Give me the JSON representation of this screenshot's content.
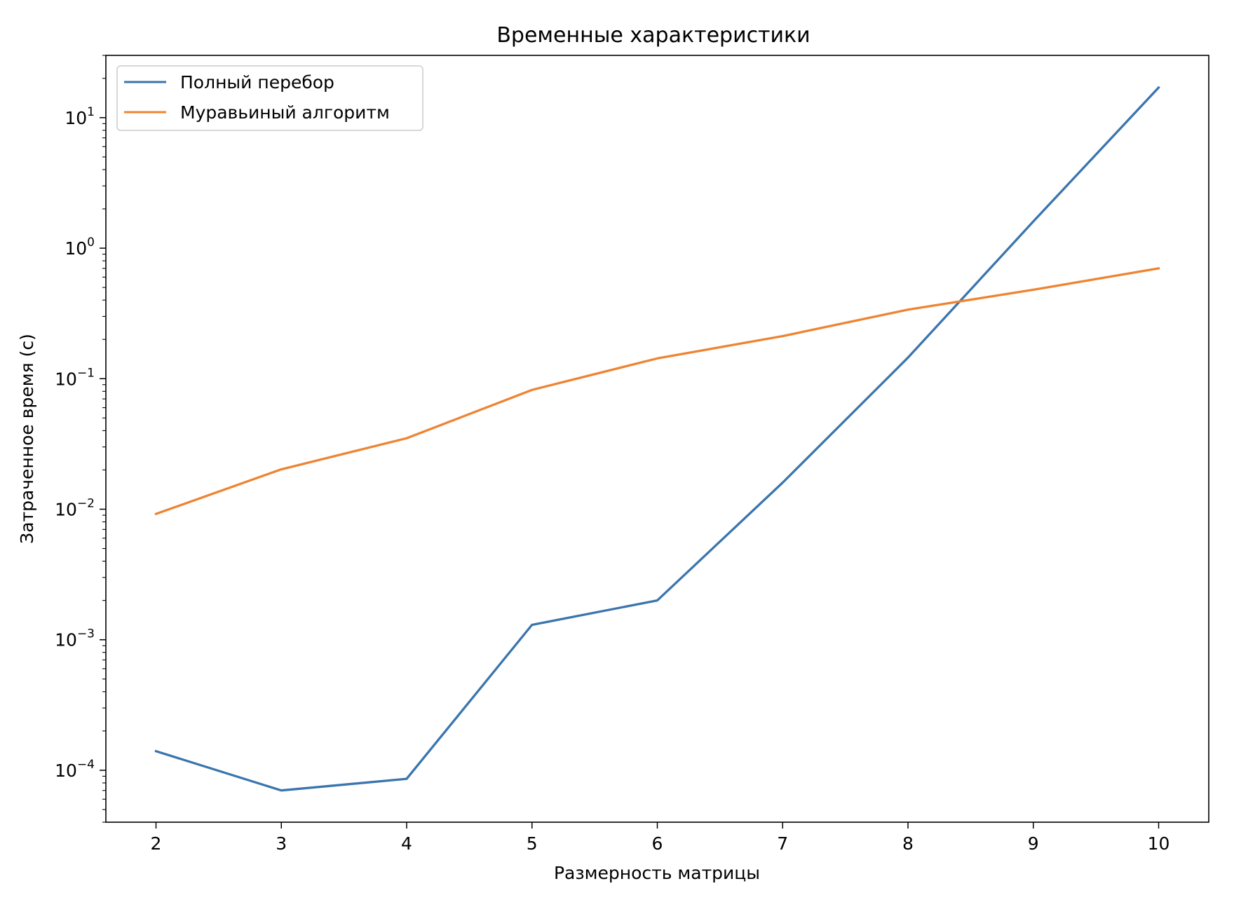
{
  "chart_data": {
    "type": "line",
    "title": "Временные характеристики",
    "xlabel": "Размерность матрицы",
    "ylabel": "Затраченное время (с)",
    "x": [
      2,
      3,
      4,
      5,
      6,
      7,
      8,
      9,
      10
    ],
    "xlim": [
      1.6,
      10.4
    ],
    "yscale": "log",
    "ylim": [
      4e-05,
      30
    ],
    "x_ticks": [
      2,
      3,
      4,
      5,
      6,
      7,
      8,
      9,
      10
    ],
    "y_ticks": [
      {
        "value": 0.0001,
        "base": "10",
        "exp": "−4"
      },
      {
        "value": 0.001,
        "base": "10",
        "exp": "−3"
      },
      {
        "value": 0.01,
        "base": "10",
        "exp": "−2"
      },
      {
        "value": 0.1,
        "base": "10",
        "exp": "−1"
      },
      {
        "value": 1,
        "base": "10",
        "exp": "0"
      },
      {
        "value": 10,
        "base": "10",
        "exp": "1"
      }
    ],
    "grid": false,
    "legend_position": "top-left",
    "series": [
      {
        "name": "Полный перебор",
        "color": "#3a75ad",
        "values": [
          0.00014,
          7e-05,
          8.6e-05,
          0.0013,
          0.002,
          0.016,
          0.145,
          1.6,
          17
        ]
      },
      {
        "name": "Муравьиный алгоритм",
        "color": "#ee8432",
        "values": [
          0.0092,
          0.0202,
          0.035,
          0.082,
          0.143,
          0.212,
          0.338,
          0.48,
          0.7
        ]
      }
    ]
  }
}
